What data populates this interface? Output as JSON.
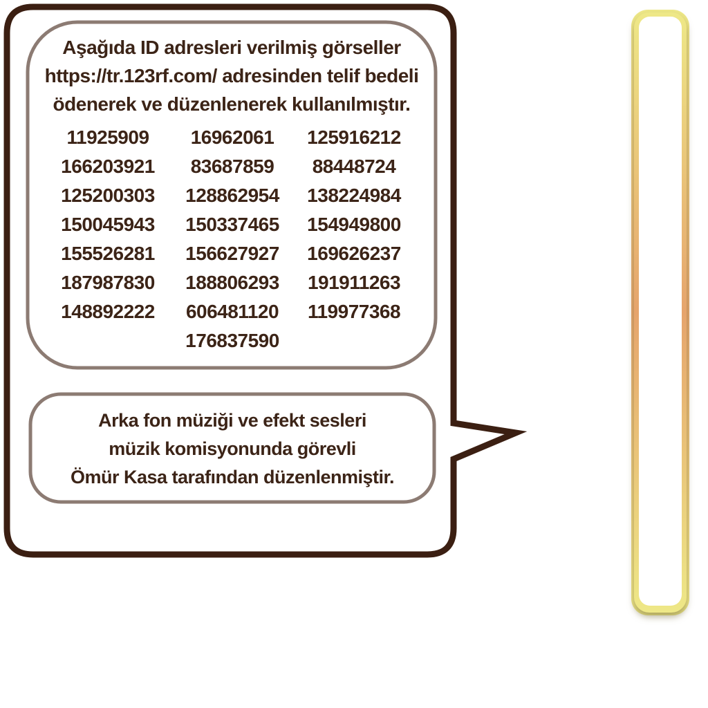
{
  "credits": {
    "header_lines": [
      "Aşağıda ID adresleri verilmiş görseller",
      "https://tr.123rf.com/ adresinden telif bedeli",
      "ödenerek ve düzenlenerek kullanılmıştır."
    ],
    "ids": [
      [
        "11925909",
        "16962061",
        "125916212"
      ],
      [
        "166203921",
        "83687859",
        "88448724"
      ],
      [
        "125200303",
        "128862954",
        "138224984"
      ],
      [
        "150045943",
        "150337465",
        "154949800"
      ],
      [
        "155526281",
        "156627927",
        "169626237"
      ],
      [
        "187987830",
        "188806293",
        "191911263"
      ],
      [
        "148892222",
        "606481120",
        "119977368"
      ],
      [
        "",
        "176837590",
        ""
      ]
    ]
  },
  "music_credit": {
    "lines": [
      "Arka fon müziği ve  efekt sesleri",
      "müzik komisyonunda görevli",
      "Ömür Kasa tarafından düzenlenmiştir."
    ]
  },
  "colors": {
    "text": "#3c2417",
    "bubble_outline": "#3b1f12",
    "panel_outline": "#8c7b73",
    "bar_glow_edge": "#e9e37a",
    "bar_glow_center": "#e39a5c"
  }
}
